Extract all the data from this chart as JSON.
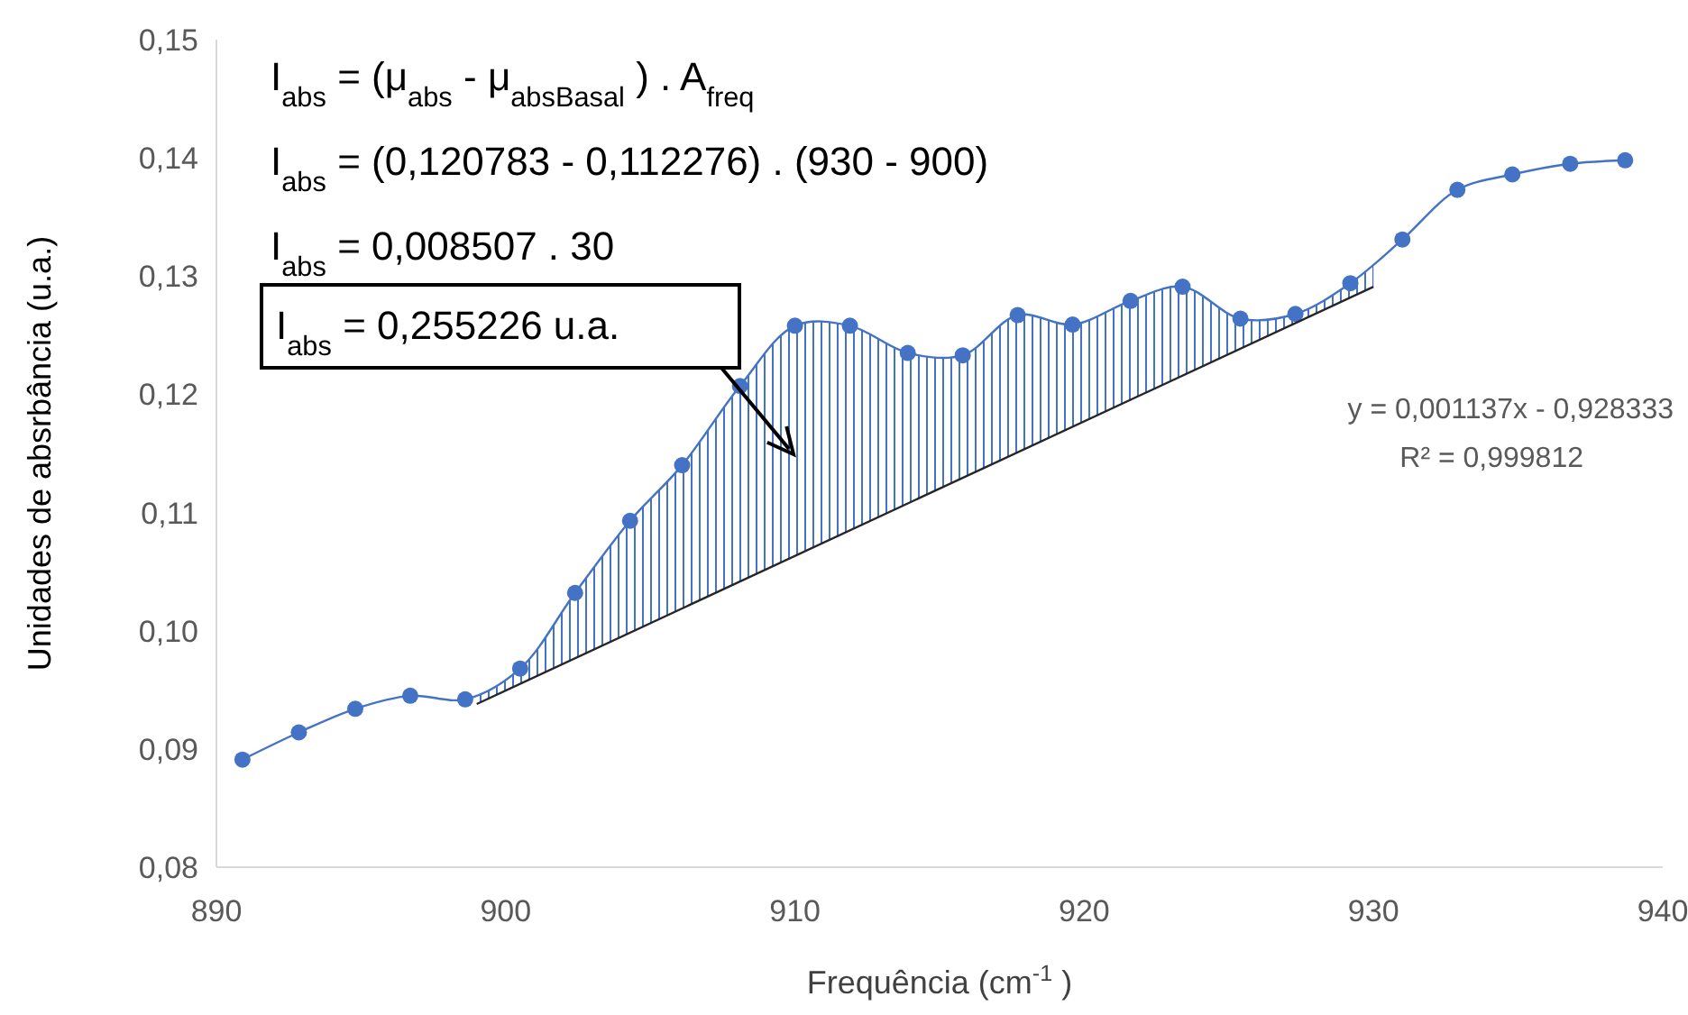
{
  "chart_data": {
    "type": "line",
    "xlabel": "Frequência (cm$^{-1}$)",
    "ylabel": "Unidades de absrbância (u.a.)",
    "xlim": [
      890,
      940
    ],
    "xticks": [
      890,
      900,
      910,
      920,
      930,
      940
    ],
    "ylim": [
      0.08,
      0.15
    ],
    "yticks": [
      {
        "value": 0.08,
        "label": "0,08"
      },
      {
        "value": 0.09,
        "label": "0,09"
      },
      {
        "value": 0.1,
        "label": "0,10"
      },
      {
        "value": 0.11,
        "label": "0,11"
      },
      {
        "value": 0.12,
        "label": "0,12"
      },
      {
        "value": 0.13,
        "label": "0,13"
      },
      {
        "value": 0.14,
        "label": "0,14"
      },
      {
        "value": 0.15,
        "label": "0,15"
      }
    ],
    "grid": false,
    "marker": "circle",
    "series": [
      {
        "color": "#4472c4",
        "x": [
          890.9,
          892.85,
          894.8,
          896.7,
          898.6,
          900.5,
          902.4,
          904.3,
          906.1,
          908.1,
          910.0,
          911.9,
          913.9,
          915.8,
          917.7,
          919.6,
          921.6,
          923.4,
          925.4,
          927.3,
          929.2,
          931.0,
          932.9,
          934.8,
          936.8,
          938.7
        ],
        "values": [
          0.0891,
          0.0914,
          0.0934,
          0.0945,
          0.0942,
          0.0968,
          0.1032,
          0.1093,
          0.114,
          0.1207,
          0.1258,
          0.1258,
          0.1235,
          0.1233,
          0.1267,
          0.1259,
          0.1279,
          0.1291,
          0.1264,
          0.1268,
          0.1294,
          0.1331,
          0.1373,
          0.1386,
          0.1395,
          0.1398
        ]
      },
      {
        "color": "#262626",
        "marker": "none",
        "x": [
          899,
          930
        ],
        "values": [
          0.0938,
          0.1291
        ]
      }
    ],
    "annotations": [
      "I$_{abs}$ = (μ$_{abs}$ - μ$_{absBasal}$) . A$_{freq}$",
      "I$_{abs}$ = (0,120783 - 0,112276) . (930 - 900)",
      "I$_{abs}$ = 0,008507 . 30",
      "I$_{abs}$ = 0,255226 u.a.",
      "y = 0,001137x - 0,928333",
      "R² = 0,999812"
    ]
  }
}
